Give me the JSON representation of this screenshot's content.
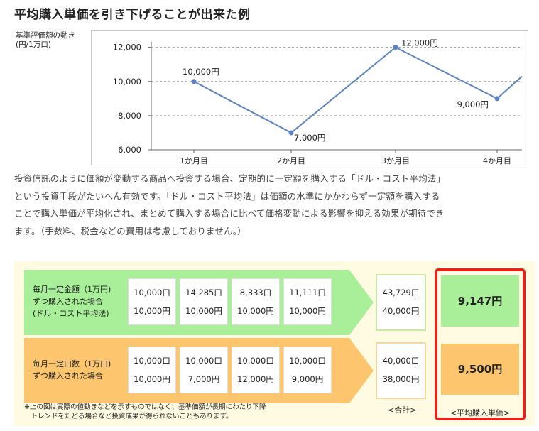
{
  "title": "平均購入単価を引き下げることが出来た例",
  "axis_caption": [
    "基準評価額の動き",
    "(円/1万口)"
  ],
  "chart_data": {
    "type": "line",
    "categories": [
      "1か月目",
      "2か月目",
      "3か月目",
      "4か月目"
    ],
    "values": [
      10000,
      7000,
      12000,
      9000
    ],
    "tail_value": 10300,
    "data_labels": [
      "10,000円",
      "7,000円",
      "12,000円",
      "9,000円"
    ],
    "y_ticks": [
      6000,
      8000,
      10000,
      12000
    ],
    "y_tick_labels": [
      "6,000",
      "8,000",
      "10,000",
      "12,000"
    ],
    "ylim": [
      6000,
      12400
    ],
    "gridlines": "dashed",
    "line_color": "#5b83c4"
  },
  "paragraph": [
    "投資信託のように価額が変動する商品へ投資する場合、定期的に一定額を購入する「ドル・コスト平均法」",
    "という投資手段がたいへん有効です。「ドル・コスト平均法」は価額の水準にかかわらず一定額を購入する",
    "ことで購入単価が平均化され、まとめて購入する場合に比べて価格変動による影響を抑える効果が期待でき",
    "ます。（手数料、税金などの費用は考慮しておりません。）"
  ],
  "comparison": {
    "rows": [
      {
        "label": [
          "毎月一定金額（1万円)",
          "ずつ購入された場合",
          "(ドル・コスト平均法)"
        ],
        "units": [
          "10,000口",
          "14,285口",
          "8,333口",
          "11,111口"
        ],
        "amounts": [
          "10,000円",
          "10,000円",
          "10,000円",
          "10,000円"
        ],
        "total_units": "43,729口",
        "total_amount": "40,000円",
        "average": "9,147円"
      },
      {
        "label": [
          "毎月一定口数（1万口)",
          "ずつ購入された場合"
        ],
        "units": [
          "10,000口",
          "10,000口",
          "10,000口",
          "10,000口"
        ],
        "amounts": [
          "10,000円",
          "7,000円",
          "12,000円",
          "9,000円"
        ],
        "total_units": "40,000口",
        "total_amount": "38,000円",
        "average": "9,500円"
      }
    ],
    "total_caption": "<合計>",
    "average_caption": "<平均購入単価>",
    "footnote": [
      "※上の図は実際の値動きなどを示すものではなく、基準価額が長期にわたり下降",
      "　トレンドをたどる場合など投資成果が得られないこともあります。"
    ],
    "colors": {
      "green": "#a9ef9a",
      "orange": "#fdc66e",
      "frame": "#e0251c",
      "panel": "#fffbe2"
    }
  }
}
